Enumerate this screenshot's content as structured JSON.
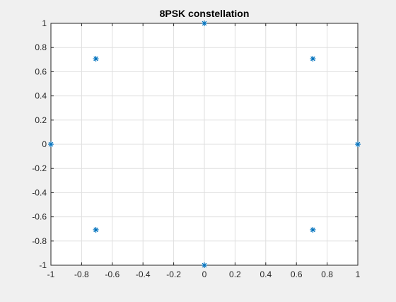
{
  "chart_data": {
    "type": "scatter",
    "title": "8PSK constellation",
    "xlabel": "",
    "ylabel": "",
    "xlim": [
      -1,
      1
    ],
    "ylim": [
      -1,
      1
    ],
    "xticks": [
      -1,
      -0.8,
      -0.6,
      -0.4,
      -0.2,
      0,
      0.2,
      0.4,
      0.6,
      0.8,
      1
    ],
    "yticks": [
      -1,
      -0.8,
      -0.6,
      -0.4,
      -0.2,
      0,
      0.2,
      0.4,
      0.6,
      0.8,
      1
    ],
    "xtick_labels": [
      "-1",
      "-0.8",
      "-0.6",
      "-0.4",
      "-0.2",
      "0",
      "0.2",
      "0.4",
      "0.6",
      "0.8",
      "1"
    ],
    "ytick_labels": [
      "-1",
      "-0.8",
      "-0.6",
      "-0.4",
      "-0.2",
      "0",
      "0.2",
      "0.4",
      "0.6",
      "0.8",
      "1"
    ],
    "grid": true,
    "marker": "asterisk",
    "series": [
      {
        "x": [
          1,
          0.7071,
          0,
          -0.7071,
          -1,
          -0.7071,
          0,
          0.7071
        ],
        "y": [
          0,
          0.7071,
          1,
          0.7071,
          0,
          -0.7071,
          -1,
          -0.7071
        ],
        "color": "#0072bd"
      }
    ]
  },
  "colors": {
    "figure_background": "#f0f0f0",
    "axes_background": "#ffffff",
    "grid": "#dfdfdf",
    "axis": "#262626"
  }
}
